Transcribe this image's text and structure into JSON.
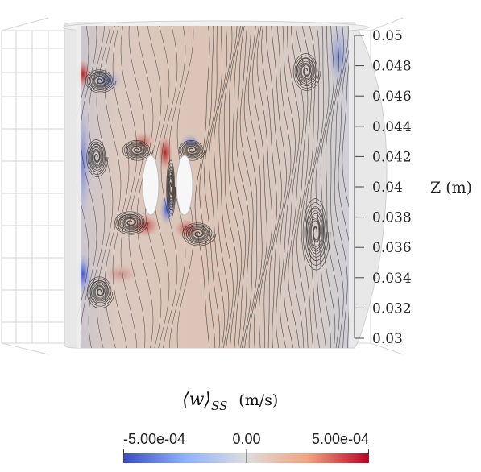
{
  "z_axis": {
    "title": "Z (m)",
    "ticks": [
      "0.05",
      "0.048",
      "0.046",
      "0.044",
      "0.042",
      "0.04",
      "0.038",
      "0.036",
      "0.034",
      "0.032",
      "0.03"
    ]
  },
  "colorbar": {
    "title_math": "⟨w⟩",
    "title_subscript": "SS",
    "title_units": "(m/s)",
    "labels": [
      "-5.00e-04",
      "0.00",
      "5.00e-04"
    ],
    "colors": {
      "min": "#3b4cc0",
      "mid": "#dddddd",
      "max": "#b40426"
    }
  }
}
